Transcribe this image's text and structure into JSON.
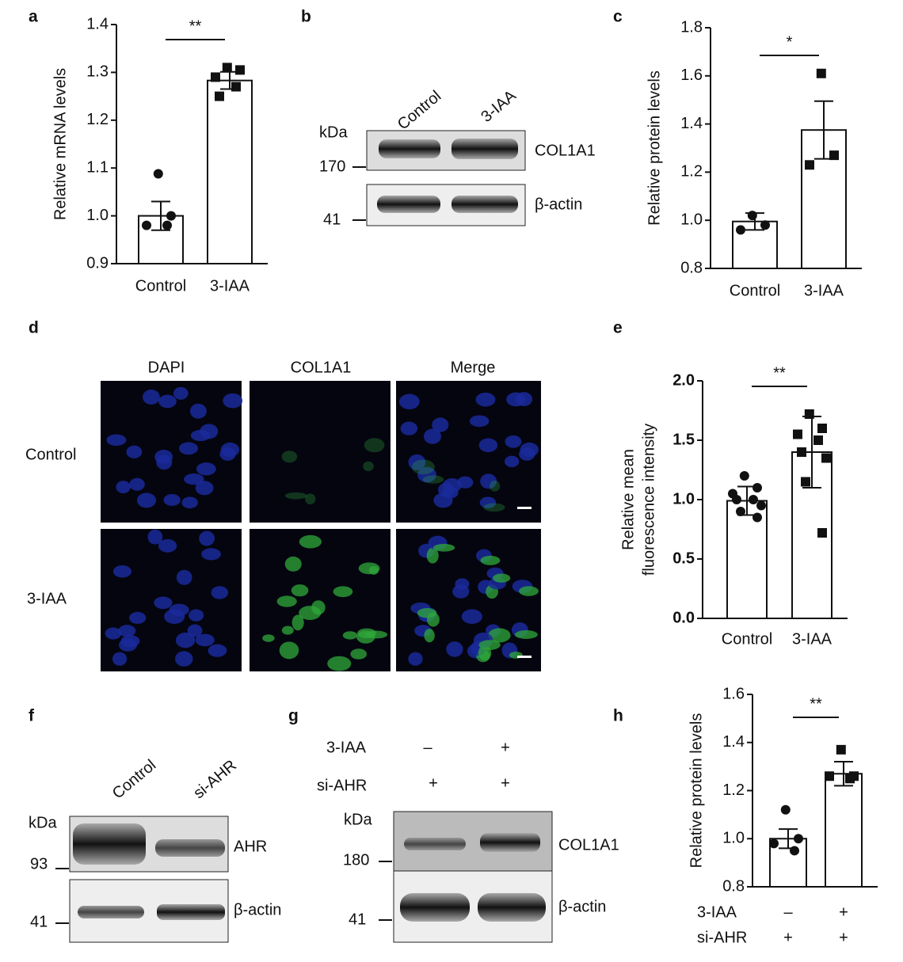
{
  "chart_data": [
    {
      "type": "bar",
      "ylabel": "Relative mRNA levels",
      "categories": [
        "Control",
        "3-IAA"
      ],
      "values": [
        1.0,
        1.283
      ],
      "errors": [
        0.03,
        0.018
      ],
      "points": [
        [
          1.088,
          1.0,
          0.98,
          0.98
        ],
        [
          1.31,
          1.305,
          1.29,
          1.27,
          1.25
        ]
      ],
      "markers": [
        "circle",
        "square"
      ],
      "color": "#ffffff",
      "significance": "**",
      "ylim": [
        0.9,
        1.4
      ],
      "yticks": [
        0.9,
        {
          "value": 1,
          "label": "1.0"
        },
        1.1,
        1.2,
        1.3,
        1.4
      ]
    },
    {
      "type": "bar",
      "ylabel": "Relative protein levels",
      "categories": [
        "Control",
        "3-IAA"
      ],
      "values": [
        0.995,
        1.375
      ],
      "errors": [
        0.035,
        0.12
      ],
      "points": [
        [
          1.02,
          0.98,
          0.96
        ],
        [
          1.61,
          1.27,
          1.23
        ]
      ],
      "markers": [
        "circle",
        "square"
      ],
      "color": "#ffffff",
      "significance": "*",
      "ylim": [
        0.8,
        1.8
      ],
      "yticks": [
        0.8,
        {
          "value": 1,
          "label": "1.0"
        },
        1.2,
        1.4,
        1.6,
        1.8
      ]
    },
    {
      "type": "bar",
      "ylabel": [
        "Relative mean",
        "fluorescence intensity"
      ],
      "categories": [
        "Control",
        "3-IAA"
      ],
      "values": [
        0.99,
        1.4
      ],
      "errors": [
        0.12,
        0.3
      ],
      "points": [
        [
          1.2,
          1.1,
          1.05,
          1.0,
          1.0,
          0.95,
          0.9,
          0.85
        ],
        [
          1.72,
          1.6,
          1.55,
          1.5,
          1.4,
          1.35,
          1.15,
          0.72
        ]
      ],
      "markers": [
        "circle",
        "square"
      ],
      "color": "#ffffff",
      "significance": "**",
      "ylim": [
        0,
        2
      ],
      "yticks": [
        {
          "value": 0,
          "label": "0.0"
        },
        0.5,
        {
          "value": 1,
          "label": "1.0"
        },
        1.5,
        {
          "value": 2,
          "label": "2.0"
        }
      ]
    },
    {
      "type": "bar",
      "ylabel": "Relative protein levels",
      "categories": [
        null,
        null
      ],
      "values": [
        1.0,
        1.27
      ],
      "errors": [
        0.04,
        0.05
      ],
      "points": [
        [
          1.12,
          1.0,
          0.98,
          0.95
        ],
        [
          1.37,
          1.26,
          1.26,
          1.25
        ]
      ],
      "markers": [
        "circle",
        "square"
      ],
      "color": "#ffffff",
      "significance": "**",
      "conditions": [
        {
          "name": "3-IAA",
          "signs": [
            "–",
            "+"
          ]
        },
        {
          "name": "si-AHR",
          "signs": [
            "+",
            "+"
          ]
        }
      ],
      "ylim": [
        0.8,
        1.6
      ],
      "yticks": [
        0.8,
        {
          "value": 1,
          "label": "1.0"
        },
        1.2,
        1.4,
        1.6
      ]
    }
  ],
  "panel_labels": [
    "a",
    "b",
    "c",
    "d",
    "e",
    "f",
    "g",
    "h"
  ],
  "blot_b": {
    "kda": "kDa",
    "lanes": [
      "Control",
      "3-IAA"
    ],
    "markers": [
      "170",
      "41"
    ],
    "bands": [
      "COL1A1",
      "β-actin"
    ]
  },
  "image_d": {
    "columns": [
      "DAPI",
      "COL1A1",
      "Merge"
    ],
    "rows": [
      "Control",
      "3-IAA"
    ]
  },
  "blot_f": {
    "kda": "kDa",
    "lanes": [
      "Control",
      "si-AHR"
    ],
    "markers": [
      "93",
      "41"
    ],
    "bands": [
      "AHR",
      "β-actin"
    ]
  },
  "blot_g": {
    "conditions": [
      {
        "name": "3-IAA",
        "signs": [
          "–",
          "+"
        ]
      },
      {
        "name": "si-AHR",
        "signs": [
          "+",
          "+"
        ]
      }
    ],
    "kda": "kDa",
    "markers": [
      "180",
      "41"
    ],
    "bands": [
      "COL1A1",
      "β-actin"
    ]
  }
}
